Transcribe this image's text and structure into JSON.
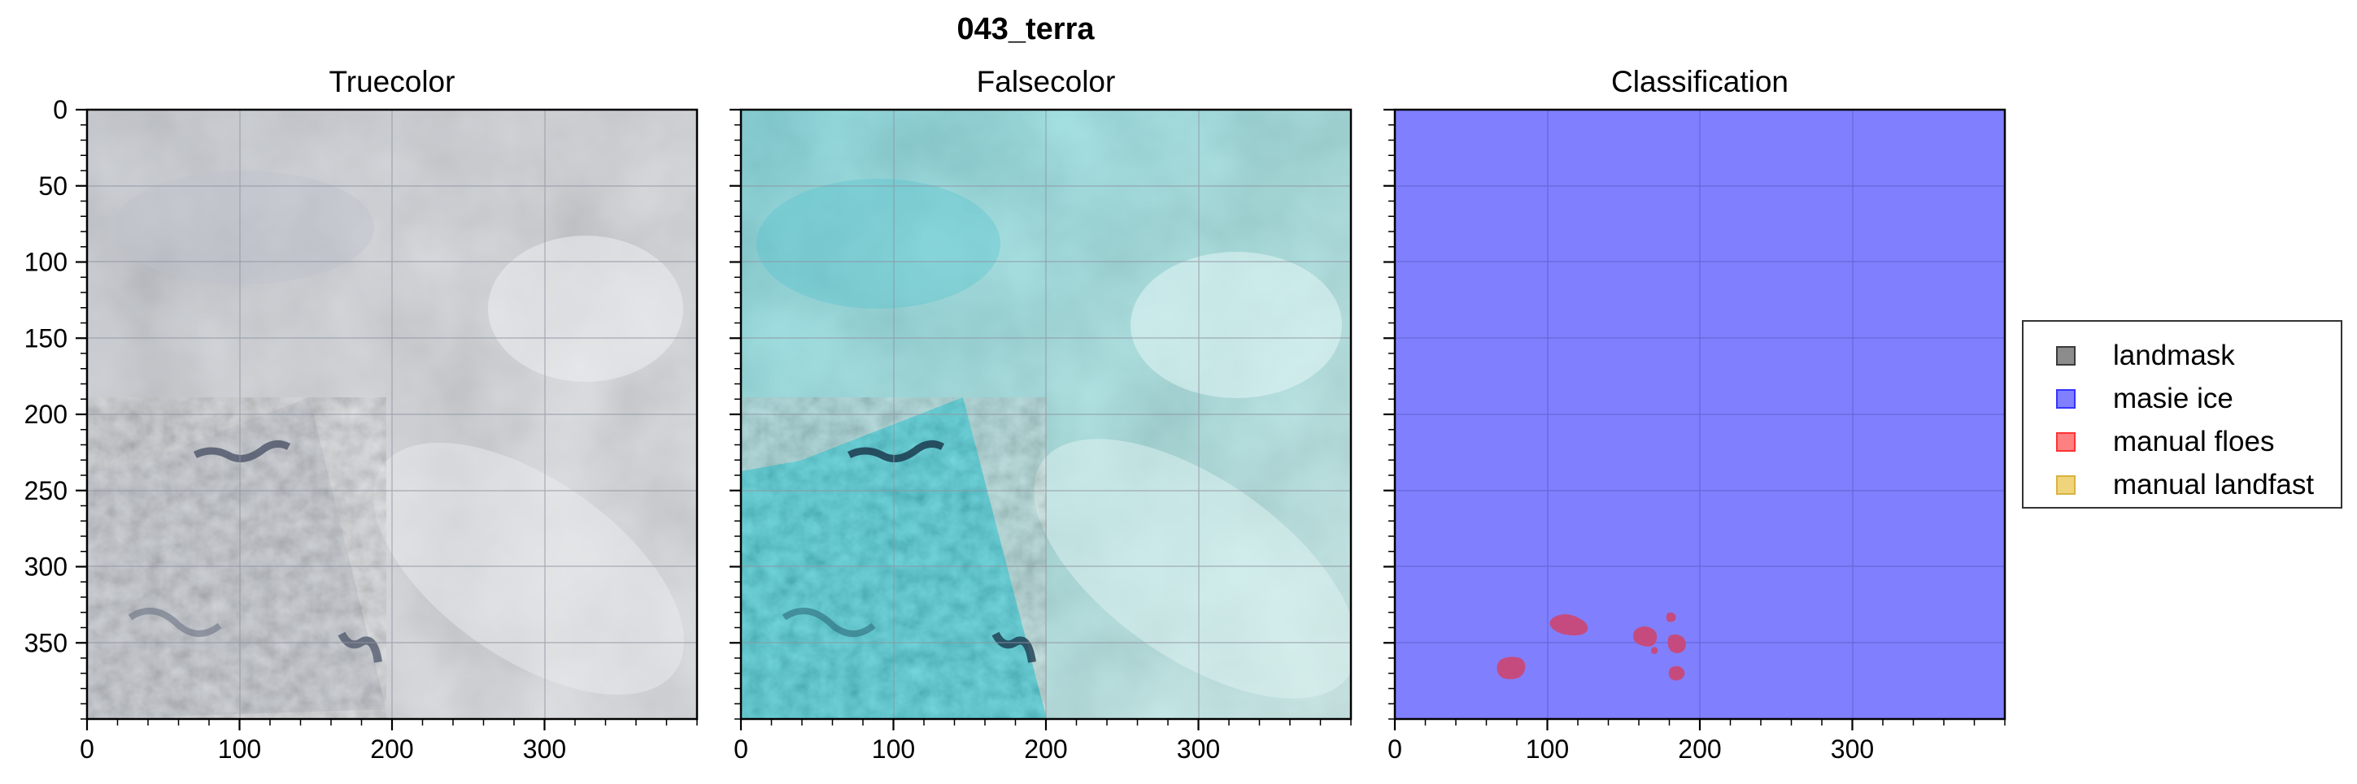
{
  "figure": {
    "suptitle": "043_terra",
    "panels": [
      {
        "id": "truecolor",
        "title": "Truecolor"
      },
      {
        "id": "falsecolor",
        "title": "Falsecolor"
      },
      {
        "id": "classification",
        "title": "Classification"
      }
    ],
    "x_axis": {
      "ticks": [
        "0",
        "100",
        "200",
        "300"
      ],
      "range": [
        0,
        400
      ]
    },
    "y_axis": {
      "ticks": [
        "0",
        "50",
        "100",
        "150",
        "200",
        "250",
        "300",
        "350"
      ],
      "range": [
        0,
        400
      ]
    }
  },
  "colors": {
    "truecolor_base": "#c9ccd2",
    "falsecolor_base": "#8fdcdc",
    "falsecolor_scene": "#37c9d3",
    "masie_ice": "#8080ff",
    "manual_floes": "#c54b7f",
    "landmask": "#808080",
    "manual_landfast": "#f0d47c",
    "grid": "#9aa0ac"
  },
  "legend": {
    "items": [
      {
        "name": "landmask-item",
        "label": "landmask",
        "fill": "#8c8c8c",
        "edge": "#3a3a3a"
      },
      {
        "name": "masie-ice-item",
        "label": "masie ice",
        "fill": "#8080ff",
        "edge": "#3333ff"
      },
      {
        "name": "manual-floes-item",
        "label": "manual floes",
        "fill": "#ff8080",
        "edge": "#ff3333"
      },
      {
        "name": "manual-landfast-item",
        "label": "manual landfast",
        "fill": "#f0d47c",
        "edge": "#d9b340"
      }
    ]
  }
}
